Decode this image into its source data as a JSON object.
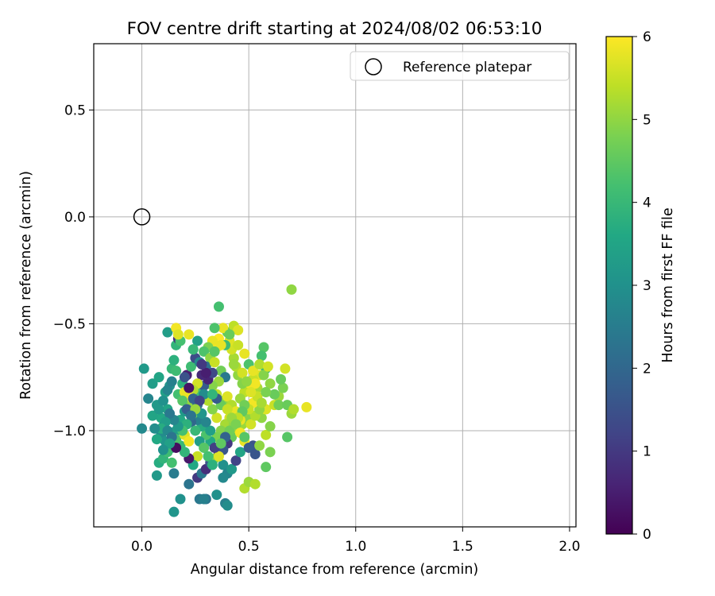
{
  "chart_data": {
    "type": "scatter",
    "title": "FOV centre drift starting at 2024/08/02 06:53:10",
    "xlabel": "Angular distance from reference (arcmin)",
    "ylabel": "Rotation from reference (arcmin)",
    "xlim": [
      -0.225,
      2.03
    ],
    "ylim": [
      -1.45,
      0.81
    ],
    "xticks": [
      "0.0",
      "0.5",
      "1.0",
      "1.5",
      "2.0"
    ],
    "xtick_values": [
      0.0,
      0.5,
      1.0,
      1.5,
      2.0
    ],
    "yticks": [
      "0.5",
      "0.0",
      "−0.5",
      "−1.0"
    ],
    "ytick_values": [
      0.5,
      0.0,
      -0.5,
      -1.0
    ],
    "grid": true,
    "legend": {
      "position": "top-right",
      "entries": [
        "Reference platepar"
      ]
    },
    "reference": {
      "x": 0.0,
      "y": 0.0,
      "label": "Reference platepar"
    },
    "colorbar": {
      "label": "Hours from first FF file",
      "range": [
        0,
        6
      ],
      "ticks": [
        "0",
        "1",
        "2",
        "3",
        "4",
        "5",
        "6"
      ],
      "colormap": "viridis"
    },
    "points": [
      [
        0.0,
        -0.99,
        2.8
      ],
      [
        0.01,
        -0.71,
        3.2
      ],
      [
        0.03,
        -0.85,
        2.7
      ],
      [
        0.05,
        -0.78,
        3.3
      ],
      [
        0.07,
        -0.88,
        3.2
      ],
      [
        0.08,
        -0.75,
        3.5
      ],
      [
        0.09,
        -0.94,
        3.6
      ],
      [
        0.1,
        -0.98,
        3.0
      ],
      [
        0.11,
        -0.82,
        3.4
      ],
      [
        0.12,
        -0.9,
        3.5
      ],
      [
        0.13,
        -0.79,
        3.1
      ],
      [
        0.14,
        -0.71,
        4.0
      ],
      [
        0.15,
        -0.67,
        3.8
      ],
      [
        0.16,
        -0.6,
        3.9
      ],
      [
        0.12,
        -0.54,
        3.3
      ],
      [
        0.09,
        -1.02,
        2.9
      ],
      [
        0.11,
        -1.05,
        3.1
      ],
      [
        0.14,
        -1.08,
        2.8
      ],
      [
        0.16,
        -1.0,
        3.3
      ],
      [
        0.18,
        -0.95,
        3.6
      ],
      [
        0.2,
        -0.91,
        3.2
      ],
      [
        0.22,
        -0.87,
        3.0
      ],
      [
        0.17,
        -0.83,
        4.2
      ],
      [
        0.19,
        -0.78,
        3.8
      ],
      [
        0.21,
        -0.74,
        0.5
      ],
      [
        0.23,
        -0.7,
        4.1
      ],
      [
        0.25,
        -0.66,
        1.4
      ],
      [
        0.24,
        -0.62,
        4.2
      ],
      [
        0.26,
        -0.58,
        3.4
      ],
      [
        0.17,
        -0.57,
        0.9
      ],
      [
        0.08,
        -1.15,
        3.7
      ],
      [
        0.1,
        -1.13,
        3.9
      ],
      [
        0.12,
        -1.1,
        4.1
      ],
      [
        0.14,
        -1.15,
        4.2
      ],
      [
        0.07,
        -1.21,
        3.2
      ],
      [
        0.15,
        -1.2,
        2.5
      ],
      [
        0.18,
        -1.32,
        3.0
      ],
      [
        0.15,
        -1.38,
        3.1
      ],
      [
        0.27,
        -1.32,
        2.4
      ],
      [
        0.3,
        -1.32,
        2.3
      ],
      [
        0.29,
        -1.32,
        2.6
      ],
      [
        0.35,
        -1.3,
        3.0
      ],
      [
        0.39,
        -1.34,
        2.6
      ],
      [
        0.4,
        -1.35,
        2.9
      ],
      [
        0.22,
        -1.25,
        2.3
      ],
      [
        0.26,
        -1.22,
        1.0
      ],
      [
        0.28,
        -1.2,
        2.4
      ],
      [
        0.3,
        -1.18,
        0.8
      ],
      [
        0.32,
        -1.15,
        1.6
      ],
      [
        0.34,
        -1.13,
        4.9
      ],
      [
        0.36,
        -1.1,
        1.2
      ],
      [
        0.38,
        -1.16,
        3.0
      ],
      [
        0.4,
        -1.2,
        2.7
      ],
      [
        0.42,
        -1.18,
        3.2
      ],
      [
        0.38,
        -1.22,
        2.8
      ],
      [
        0.44,
        -1.14,
        1.2
      ],
      [
        0.46,
        -1.1,
        3.5
      ],
      [
        0.48,
        -1.27,
        5.3
      ],
      [
        0.5,
        -1.24,
        5.1
      ],
      [
        0.53,
        -1.25,
        5.3
      ],
      [
        0.52,
        -1.07,
        1.5
      ],
      [
        0.48,
        -1.05,
        5.8
      ],
      [
        0.5,
        -1.08,
        1.7
      ],
      [
        0.53,
        -1.11,
        1.6
      ],
      [
        0.55,
        -1.07,
        5.0
      ],
      [
        0.58,
        -1.17,
        4.5
      ],
      [
        0.6,
        -1.1,
        4.8
      ],
      [
        0.58,
        -1.02,
        5.4
      ],
      [
        0.6,
        -0.98,
        4.9
      ],
      [
        0.56,
        -0.94,
        5.0
      ],
      [
        0.58,
        -0.9,
        5.7
      ],
      [
        0.62,
        -0.88,
        5.5
      ],
      [
        0.64,
        -0.84,
        5.1
      ],
      [
        0.66,
        -0.8,
        4.8
      ],
      [
        0.65,
        -0.76,
        4.6
      ],
      [
        0.67,
        -0.71,
        5.6
      ],
      [
        0.64,
        -0.88,
        4.7
      ],
      [
        0.68,
        -0.88,
        4.6
      ],
      [
        0.7,
        -0.92,
        5.1
      ],
      [
        0.71,
        -0.9,
        5.3
      ],
      [
        0.77,
        -0.89,
        5.8
      ],
      [
        0.68,
        -1.03,
        4.4
      ],
      [
        0.57,
        -0.61,
        4.4
      ],
      [
        0.56,
        -0.65,
        4.2
      ],
      [
        0.58,
        -0.71,
        4.0
      ],
      [
        0.55,
        -0.74,
        5.7
      ],
      [
        0.52,
        -0.76,
        5.5
      ],
      [
        0.54,
        -0.8,
        5.2
      ],
      [
        0.5,
        -0.79,
        5.9
      ],
      [
        0.48,
        -0.82,
        5.4
      ],
      [
        0.46,
        -0.85,
        5.1
      ],
      [
        0.47,
        -0.78,
        4.9
      ],
      [
        0.45,
        -0.74,
        5.0
      ],
      [
        0.44,
        -0.7,
        5.3
      ],
      [
        0.43,
        -0.66,
        5.2
      ],
      [
        0.42,
        -0.62,
        5.6
      ],
      [
        0.41,
        -0.58,
        5.7
      ],
      [
        0.4,
        -0.54,
        4.5
      ],
      [
        0.43,
        -0.51,
        5.4
      ],
      [
        0.38,
        -0.52,
        5.8
      ],
      [
        0.36,
        -0.57,
        6.0
      ],
      [
        0.35,
        -0.61,
        5.9
      ],
      [
        0.33,
        -0.58,
        5.8
      ],
      [
        0.31,
        -0.61,
        4.8
      ],
      [
        0.29,
        -0.63,
        4.3
      ],
      [
        0.32,
        -0.66,
        5.0
      ],
      [
        0.3,
        -0.7,
        2.2
      ],
      [
        0.34,
        -0.68,
        5.5
      ],
      [
        0.37,
        -0.72,
        4.7
      ],
      [
        0.39,
        -0.75,
        2.4
      ],
      [
        0.36,
        -0.77,
        5.1
      ],
      [
        0.33,
        -0.79,
        4.9
      ],
      [
        0.35,
        -0.83,
        5.4
      ],
      [
        0.38,
        -0.86,
        5.0
      ],
      [
        0.4,
        -0.84,
        5.7
      ],
      [
        0.42,
        -0.88,
        5.3
      ],
      [
        0.44,
        -0.91,
        5.8
      ],
      [
        0.41,
        -0.94,
        5.6
      ],
      [
        0.39,
        -0.97,
        5.2
      ],
      [
        0.37,
        -1.0,
        4.9
      ],
      [
        0.35,
        -1.03,
        4.8
      ],
      [
        0.32,
        -1.05,
        3.6
      ],
      [
        0.3,
        -1.02,
        4.3
      ],
      [
        0.28,
        -0.98,
        3.7
      ],
      [
        0.26,
        -0.95,
        2.6
      ],
      [
        0.24,
        -0.92,
        4.6
      ],
      [
        0.23,
        -0.88,
        5.0
      ],
      [
        0.25,
        -0.85,
        5.2
      ],
      [
        0.27,
        -0.82,
        4.2
      ],
      [
        0.29,
        -0.79,
        1.7
      ],
      [
        0.31,
        -0.76,
        0.6
      ],
      [
        0.33,
        -0.73,
        1.3
      ],
      [
        0.28,
        -0.74,
        0.7
      ],
      [
        0.26,
        -0.78,
        5.6
      ],
      [
        0.24,
        -0.81,
        5.3
      ],
      [
        0.22,
        -0.84,
        6.0
      ],
      [
        0.2,
        -0.82,
        5.8
      ],
      [
        0.19,
        -0.86,
        4.4
      ],
      [
        0.21,
        -0.9,
        1.8
      ],
      [
        0.23,
        -0.96,
        2.0
      ],
      [
        0.25,
        -1.0,
        4.0
      ],
      [
        0.27,
        -1.05,
        3.3
      ],
      [
        0.29,
        -1.08,
        4.4
      ],
      [
        0.31,
        -1.12,
        4.2
      ],
      [
        0.33,
        -1.16,
        3.8
      ],
      [
        0.26,
        -1.12,
        5.5
      ],
      [
        0.24,
        -1.16,
        3.6
      ],
      [
        0.22,
        -1.13,
        0.4
      ],
      [
        0.2,
        -1.1,
        3.9
      ],
      [
        0.18,
        -1.07,
        4.0
      ],
      [
        0.16,
        -1.04,
        4.3
      ],
      [
        0.2,
        -1.02,
        5.7
      ],
      [
        0.22,
        -1.05,
        5.9
      ],
      [
        0.45,
        -1.0,
        5.4
      ],
      [
        0.47,
        -0.97,
        5.1
      ],
      [
        0.49,
        -0.94,
        4.9
      ],
      [
        0.51,
        -0.97,
        5.6
      ],
      [
        0.53,
        -0.93,
        5.3
      ],
      [
        0.55,
        -0.9,
        5.0
      ],
      [
        0.52,
        -0.87,
        5.9
      ],
      [
        0.5,
        -0.9,
        5.5
      ],
      [
        0.48,
        -0.88,
        4.7
      ],
      [
        0.46,
        -0.95,
        5.8
      ],
      [
        0.44,
        -0.98,
        5.2
      ],
      [
        0.42,
        -1.03,
        4.6
      ],
      [
        0.4,
        -1.06,
        1.0
      ],
      [
        0.38,
        -1.09,
        1.6
      ],
      [
        0.36,
        -1.12,
        5.7
      ],
      [
        0.34,
        -1.08,
        1.1
      ],
      [
        0.32,
        -1.0,
        3.4
      ],
      [
        0.3,
        -0.96,
        2.7
      ],
      [
        0.28,
        -0.92,
        3.1
      ],
      [
        0.26,
        -0.88,
        2.1
      ],
      [
        0.24,
        -0.85,
        1.9
      ],
      [
        0.22,
        -0.8,
        0.3
      ],
      [
        0.2,
        -0.75,
        1.5
      ],
      [
        0.27,
        -0.68,
        2.8
      ],
      [
        0.36,
        -0.42,
        4.2
      ],
      [
        0.34,
        -0.52,
        4.3
      ],
      [
        0.39,
        -0.6,
        4.1
      ],
      [
        0.7,
        -0.34,
        5.0
      ],
      [
        0.18,
        -0.58,
        4.2
      ],
      [
        0.16,
        -0.52,
        5.9
      ],
      [
        0.22,
        -0.55,
        5.8
      ],
      [
        0.17,
        -0.55,
        5.7
      ],
      [
        0.24,
        -0.62,
        4.0
      ],
      [
        0.45,
        -0.6,
        5.5
      ],
      [
        0.48,
        -0.64,
        5.8
      ],
      [
        0.43,
        -0.69,
        5.1
      ],
      [
        0.5,
        -0.69,
        4.3
      ],
      [
        0.6,
        -0.78,
        5.0
      ],
      [
        0.62,
        -0.83,
        4.6
      ],
      [
        0.54,
        -0.84,
        5.5
      ],
      [
        0.56,
        -0.87,
        5.2
      ],
      [
        0.58,
        -0.82,
        4.8
      ],
      [
        0.53,
        -0.78,
        5.9
      ],
      [
        0.51,
        -0.82,
        5.7
      ],
      [
        0.47,
        -0.91,
        4.5
      ],
      [
        0.45,
        -0.94,
        5.4
      ],
      [
        0.43,
        -0.97,
        5.0
      ],
      [
        0.41,
        -1.0,
        4.7
      ],
      [
        0.39,
        -1.03,
        1.9
      ],
      [
        0.37,
        -1.06,
        4.5
      ],
      [
        0.35,
        -0.94,
        5.6
      ],
      [
        0.33,
        -0.9,
        4.9
      ],
      [
        0.31,
        -0.86,
        5.3
      ],
      [
        0.29,
        -0.83,
        2.9
      ],
      [
        0.27,
        -0.86,
        1.2
      ],
      [
        0.25,
        -0.9,
        5.1
      ],
      [
        0.23,
        -0.93,
        2.3
      ],
      [
        0.21,
        -0.97,
        3.8
      ],
      [
        0.19,
        -1.0,
        4.2
      ],
      [
        0.17,
        -0.98,
        3.2
      ],
      [
        0.15,
        -0.95,
        2.7
      ],
      [
        0.13,
        -0.92,
        2.4
      ],
      [
        0.11,
        -0.96,
        3.3
      ],
      [
        0.09,
        -0.99,
        3.7
      ],
      [
        0.12,
        -1.0,
        2.8
      ],
      [
        0.14,
        -1.03,
        2.3
      ],
      [
        0.16,
        -1.08,
        0.2
      ],
      [
        0.13,
        -1.06,
        3.4
      ],
      [
        0.1,
        -1.09,
        3.0
      ],
      [
        0.07,
        -1.04,
        3.6
      ],
      [
        0.06,
        -0.99,
        2.9
      ],
      [
        0.05,
        -0.93,
        3.5
      ],
      [
        0.08,
        -0.9,
        3.2
      ],
      [
        0.1,
        -0.86,
        3.0
      ],
      [
        0.12,
        -0.81,
        2.7
      ],
      [
        0.14,
        -0.77,
        2.6
      ],
      [
        0.16,
        -0.72,
        4.1
      ],
      [
        0.45,
        -0.53,
        5.7
      ],
      [
        0.41,
        -0.55,
        4.6
      ],
      [
        0.37,
        -0.6,
        5.8
      ],
      [
        0.34,
        -0.63,
        4.4
      ],
      [
        0.47,
        -0.73,
        5.6
      ],
      [
        0.49,
        -0.77,
        5.0
      ],
      [
        0.52,
        -0.72,
        5.8
      ],
      [
        0.55,
        -0.69,
        5.3
      ],
      [
        0.57,
        -0.74,
        4.9
      ],
      [
        0.59,
        -0.7,
        5.6
      ],
      [
        0.37,
        -0.88,
        4.6
      ],
      [
        0.35,
        -0.85,
        1.7
      ],
      [
        0.33,
        -0.83,
        3.9
      ],
      [
        0.4,
        -0.9,
        5.5
      ],
      [
        0.42,
        -0.94,
        5.1
      ],
      [
        0.44,
        -0.97,
        4.8
      ],
      [
        0.46,
        -1.01,
        5.9
      ],
      [
        0.48,
        -1.03,
        4.4
      ],
      [
        0.3,
        -0.73,
        0.5
      ],
      [
        0.28,
        -0.69,
        1.0
      ]
    ]
  }
}
